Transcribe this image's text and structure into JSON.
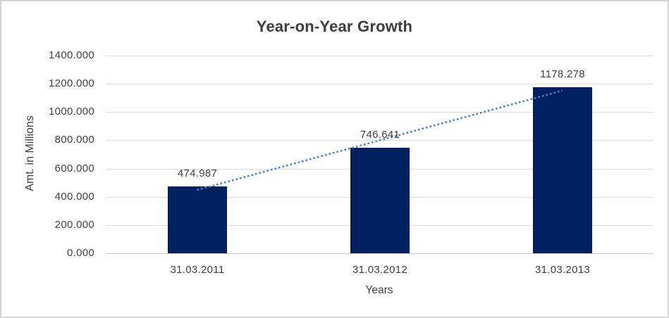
{
  "chart_data": {
    "type": "bar",
    "title": "Year-on-Year Growth",
    "xlabel": "Years",
    "ylabel": "Amt. in Millions",
    "categories": [
      "31.03.2011",
      "31.03.2012",
      "31.03.2013"
    ],
    "values": [
      474.987,
      746.641,
      1178.278
    ],
    "data_labels": [
      "474.987",
      "746.641",
      "1178.278"
    ],
    "ylim": [
      0,
      1400
    ],
    "y_ticks": [
      0,
      200,
      400,
      600,
      800,
      1000,
      1200,
      1400
    ],
    "y_tick_labels": [
      "0.000",
      "200.000",
      "400.000",
      "600.000",
      "800.000",
      "1000.000",
      "1200.000",
      "1400.000"
    ],
    "grid": true,
    "legend": "none",
    "trendline": {
      "type": "linear",
      "style": "dotted"
    },
    "colors": {
      "bar": "#002060",
      "trendline": "#4f81c4",
      "gridline": "#d9d9d9",
      "axis_line": "#c9c9c9",
      "tick_text": "#404040",
      "title_text": "#3d3d3d",
      "background": "#ffffff",
      "border": "#d6d6d6"
    }
  }
}
